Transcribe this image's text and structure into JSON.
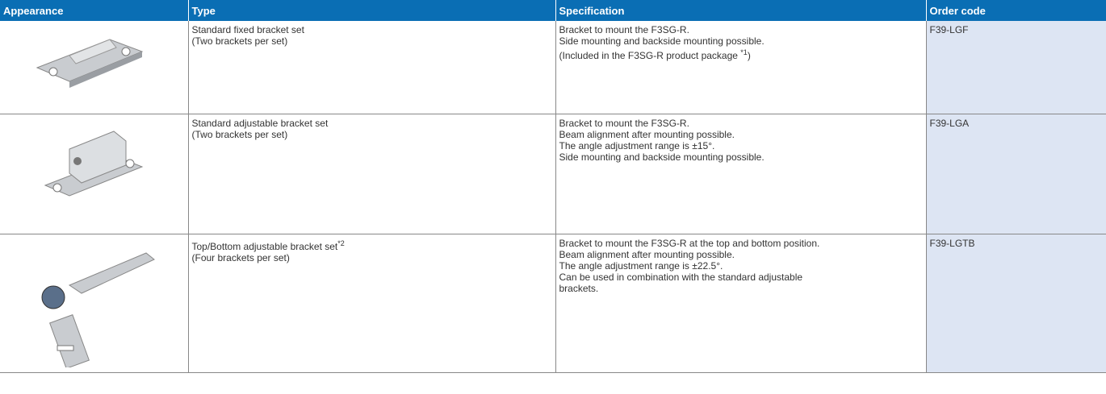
{
  "table": {
    "headers": [
      "Appearance",
      "Type",
      "Specification",
      "Order code"
    ],
    "rows": [
      {
        "type": [
          "Standard fixed bracket set",
          "(Two brackets per set)"
        ],
        "spec": [
          "Bracket to mount the F3SG-R.",
          "Side mounting and backside mounting possible.",
          {
            "text": "(Included in the F3SG-R product package ",
            "note": "*1",
            "after": ")"
          }
        ],
        "code": "F39-LGF"
      },
      {
        "type": [
          "Standard adjustable bracket set",
          "(Two brackets per set)"
        ],
        "spec": [
          "Bracket to mount the F3SG-R.",
          "Beam alignment after mounting possible.",
          "The angle adjustment range is ±15°.",
          "Side mounting and backside mounting possible."
        ],
        "code": "F39-LGA"
      },
      {
        "type": [
          {
            "text": "Top/Bottom adjustable bracket set",
            "note": "*2",
            "after": ""
          },
          "(Four brackets per set)"
        ],
        "spec": [
          "Bracket to mount the F3SG-R at the top and bottom position.",
          "Beam alignment after mounting possible.",
          "The angle adjustment range is ±22.5°.",
          "Can be used in combination with the standard adjustable",
          "brackets."
        ],
        "code": "F39-LGTB"
      }
    ]
  }
}
